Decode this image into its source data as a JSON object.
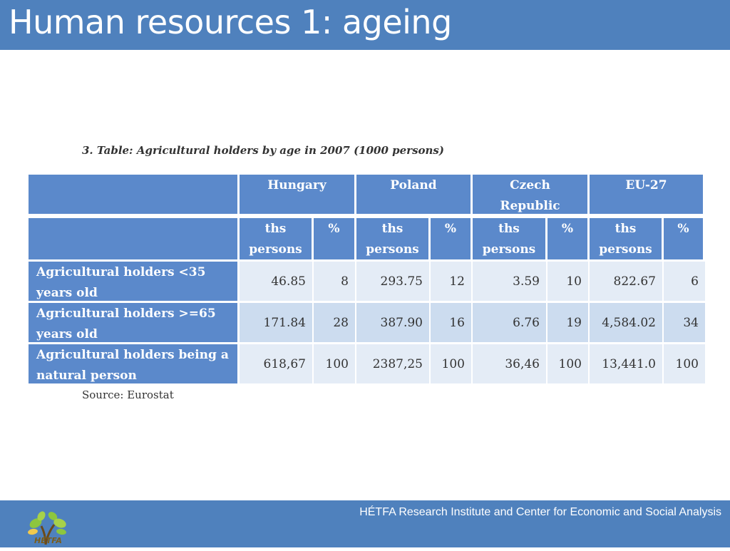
{
  "slide": {
    "title": "Human resources 1: ageing",
    "caption": "3. Table: Agricultural holders by age in 2007 (1000 persons)",
    "source": "Source: Eurostat",
    "footer": "HÉTFA Research Institute and Center for Economic and Social Analysis",
    "logo_text": "HÉTFA",
    "logo_icon": "hetfa-tree-logo",
    "header_color": "#4f81bd"
  },
  "table": {
    "countries": [
      "Hungary",
      "Poland",
      "Czech Republic",
      "EU-27"
    ],
    "country_lines": [
      [
        "Hungary"
      ],
      [
        "Poland"
      ],
      [
        "Czech",
        "Republic"
      ],
      [
        "EU-27"
      ]
    ],
    "subheaders": [
      [
        "ths",
        "persons"
      ],
      [
        "%"
      ],
      [
        "ths",
        "persons"
      ],
      [
        "%"
      ],
      [
        "ths",
        "persons"
      ],
      [
        "%"
      ],
      [
        "ths",
        "persons"
      ],
      [
        "%"
      ]
    ],
    "rows": [
      {
        "label": [
          "Agricultural holders <35",
          "years old"
        ],
        "values": [
          "46.85",
          "8",
          "293.75",
          "12",
          "3.59",
          "10",
          "822.67",
          "6"
        ]
      },
      {
        "label": [
          "Agricultural holders >=65",
          "years old"
        ],
        "values": [
          "171.84",
          "28",
          "387.90",
          "16",
          "6.76",
          "19",
          "4,584.02",
          "34"
        ]
      },
      {
        "label": [
          "Agricultural holders being a",
          "natural person"
        ],
        "values": [
          "618,67",
          "100",
          "2387,25",
          "100",
          "36,46",
          "100",
          "13,441.0",
          "100"
        ]
      }
    ]
  }
}
